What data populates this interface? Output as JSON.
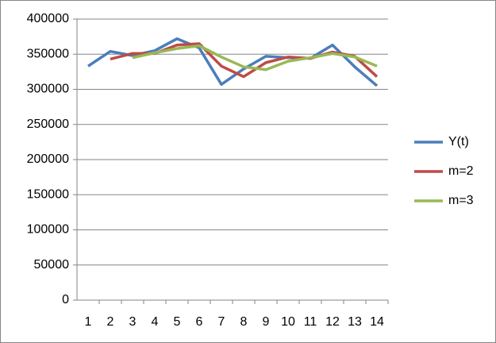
{
  "chart_data": {
    "type": "line",
    "categories": [
      "1",
      "2",
      "3",
      "4",
      "5",
      "6",
      "7",
      "8",
      "9",
      "10",
      "11",
      "12",
      "13",
      "14"
    ],
    "series": [
      {
        "name": "Y(t)",
        "color": "#4a7ebb",
        "values": [
          333000,
          354000,
          348000,
          355000,
          372000,
          359000,
          307000,
          329000,
          347000,
          345000,
          344000,
          363000,
          332000,
          305000
        ]
      },
      {
        "name": "m=2",
        "color": "#be4b48",
        "values": [
          null,
          343000,
          351000,
          351000,
          363000,
          365000,
          333000,
          318000,
          338000,
          346000,
          344000,
          353000,
          347000,
          318000
        ]
      },
      {
        "name": "m=3",
        "color": "#98b954",
        "values": [
          null,
          null,
          345000,
          352000,
          358000,
          362000,
          346000,
          332000,
          328000,
          340000,
          345000,
          351000,
          346000,
          333000
        ]
      }
    ],
    "ylim": [
      0,
      400000
    ],
    "yticks": [
      0,
      50000,
      100000,
      150000,
      200000,
      250000,
      300000,
      350000,
      400000
    ],
    "grid": true,
    "legend": "right"
  }
}
